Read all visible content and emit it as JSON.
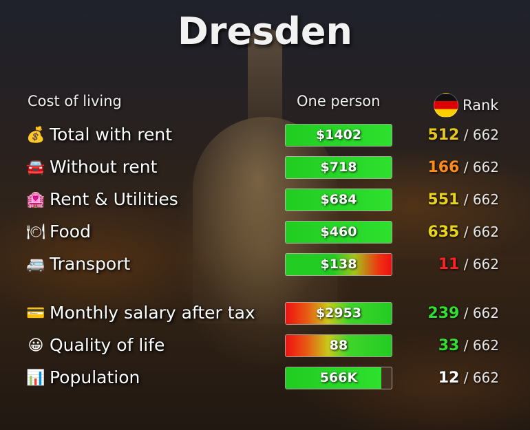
{
  "title": "Dresden",
  "headers": {
    "cost_of_living": "Cost of living",
    "one_person": "One person",
    "rank": "Rank"
  },
  "colors": {
    "green": "#22cc22",
    "red": "#ee1111",
    "yellow": "#e8d41a",
    "orange": "#ff8c1a"
  },
  "rows": [
    {
      "icon": "money-bag-icon",
      "glyph": "💰",
      "label": "Total with rent",
      "value": "$1402",
      "fill_fraction": 1.0,
      "fill_style": "green",
      "rank": "512",
      "rank_total": "/ 662",
      "rank_color": "#e8c81a"
    },
    {
      "icon": "car-icon",
      "glyph": "🚘",
      "label": "Without rent",
      "value": "$718",
      "fill_fraction": 1.0,
      "fill_style": "green",
      "rank": "166",
      "rank_total": "/ 662",
      "rank_color": "#ff8c1a"
    },
    {
      "icon": "building-icon",
      "glyph": "🏩",
      "label": "Rent & Utilities",
      "value": "$684",
      "fill_fraction": 1.0,
      "fill_style": "green",
      "rank": "551",
      "rank_total": "/ 662",
      "rank_color": "#e8d41a"
    },
    {
      "icon": "plate-icon",
      "glyph": "🍽",
      "label": "Food",
      "value": "$460",
      "fill_fraction": 1.0,
      "fill_style": "green",
      "rank": "635",
      "rank_total": "/ 662",
      "rank_color": "#e8d41a"
    },
    {
      "icon": "bus-icon",
      "glyph": "🚐",
      "label": "Transport",
      "value": "$138",
      "fill_fraction": 1.0,
      "fill_style": "green-red",
      "rank": "11",
      "rank_total": "/ 662",
      "rank_color": "#ff2222"
    },
    {
      "icon": "credit-card-icon",
      "glyph": "💳",
      "label": "Monthly salary after tax",
      "value": "$2953",
      "fill_fraction": 1.0,
      "fill_style": "red-green",
      "rank": "239",
      "rank_total": "/ 662",
      "rank_color": "#33dd33"
    },
    {
      "icon": "smiley-icon",
      "glyph": "😀",
      "label": "Quality of life",
      "value": "88",
      "fill_fraction": 1.0,
      "fill_style": "red-green",
      "rank": "33",
      "rank_total": "/ 662",
      "rank_color": "#33dd33"
    },
    {
      "icon": "chart-icon",
      "glyph": "📊",
      "label": "Population",
      "value": "566K",
      "fill_fraction": 0.9,
      "fill_style": "green",
      "rank": "12",
      "rank_total": "/ 662",
      "rank_color": "#ffffff"
    }
  ]
}
